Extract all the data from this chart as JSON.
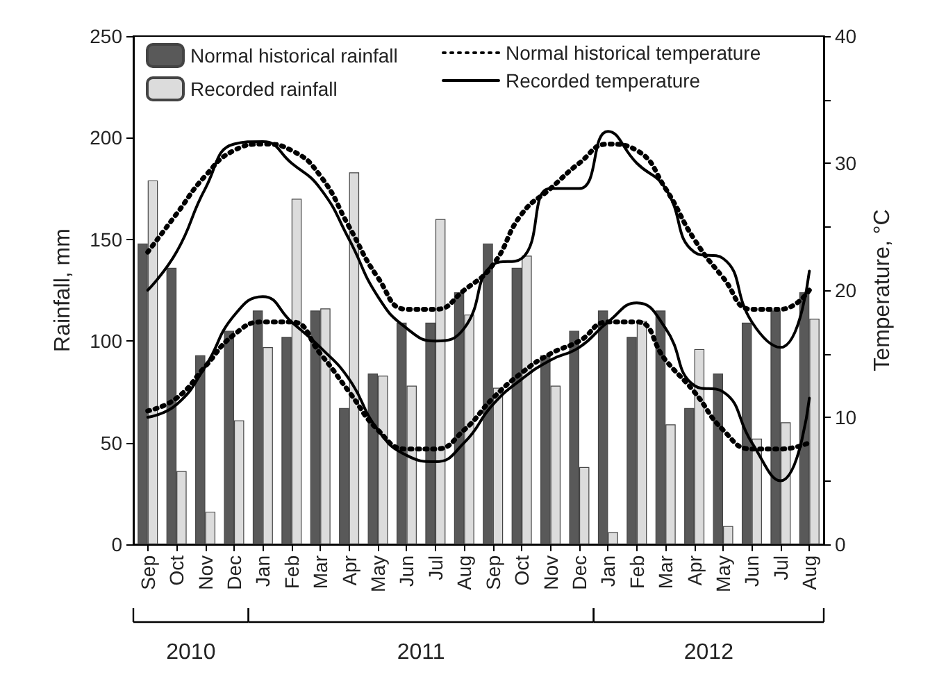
{
  "chart_data": {
    "type": "bar",
    "ylabel": "Rainfall, mm",
    "y2label": "Temperature, °C",
    "categories": [
      "Sep",
      "Oct",
      "Nov",
      "Dec",
      "Jan",
      "Feb",
      "Mar",
      "Apr",
      "May",
      "Jun",
      "Jul",
      "Aug",
      "Sep",
      "Oct",
      "Nov",
      "Dec",
      "Jan",
      "Feb",
      "Mar",
      "Apr",
      "May",
      "Jun",
      "Jul",
      "Aug"
    ],
    "ylim": [
      0,
      250
    ],
    "yticks": [
      0,
      50,
      100,
      150,
      200,
      250
    ],
    "y2lim": [
      0,
      40
    ],
    "y2ticks": [
      0,
      {
        "value": 5,
        "label": null
      },
      10,
      {
        "value": 15,
        "label": null
      },
      20,
      {
        "value": 25,
        "label": null
      },
      30,
      {
        "value": 35,
        "label": null
      },
      40
    ],
    "grid": false,
    "legend": "top",
    "marker": "none",
    "annotations": [
      "2010",
      "2011",
      "2012"
    ],
    "series": [
      {
        "name": "Normal historical rainfall",
        "color": "#595959",
        "values": [
          148,
          136,
          93,
          105,
          115,
          102,
          115,
          67,
          84,
          109,
          109,
          124,
          148,
          136,
          93,
          105,
          115,
          102,
          115,
          67,
          84,
          109,
          115,
          124
        ]
      },
      {
        "name": "Recorded rainfall",
        "color": "#dcdcdc",
        "values": [
          179,
          36,
          16,
          61,
          97,
          170,
          116,
          183,
          83,
          78,
          160,
          113,
          77,
          142,
          78,
          38,
          6,
          110,
          59,
          96,
          9,
          52,
          60,
          111
        ]
      },
      {
        "type": "line",
        "name": "Normal historical temperature",
        "color": "#000000",
        "line_style": "dotted",
        "axis": "y2",
        "values": [
          23,
          26,
          29,
          31,
          31.5,
          31,
          29,
          25,
          21,
          18.5,
          18.5,
          20,
          22,
          26,
          28,
          30,
          31.5,
          31,
          28,
          24,
          21,
          18.5,
          18.5,
          20
        ]
      },
      {
        "type": "line",
        "name": "Recorded temperature",
        "color": "#000000",
        "line_style": "solid",
        "axis": "y2",
        "values": [
          20,
          23,
          28,
          31.5,
          31.7,
          30,
          28,
          24,
          19.5,
          17,
          16,
          17,
          22,
          22.5,
          28,
          28,
          32.5,
          30,
          28,
          23,
          22.5,
          17.5,
          15.5,
          21.5
        ]
      },
      {
        "type": "line",
        "color": "#000000",
        "line_style": "dotted",
        "axis": "y2",
        "values": [
          10.5,
          11.5,
          14,
          16.5,
          17.5,
          17.5,
          15,
          12,
          9,
          7.5,
          7.5,
          9,
          11.5,
          13.5,
          15,
          16,
          17.5,
          17.5,
          14.5,
          12,
          9,
          7.5,
          7.5,
          8
        ]
      },
      {
        "type": "line",
        "color": "#000000",
        "line_style": "solid",
        "axis": "y2",
        "values": [
          10,
          11,
          14,
          18,
          19.5,
          17.5,
          15.5,
          13,
          9,
          7,
          6.5,
          8,
          11,
          13,
          14.5,
          15.5,
          17.5,
          19,
          17,
          12.5,
          12,
          8,
          5,
          11.5
        ]
      }
    ]
  }
}
